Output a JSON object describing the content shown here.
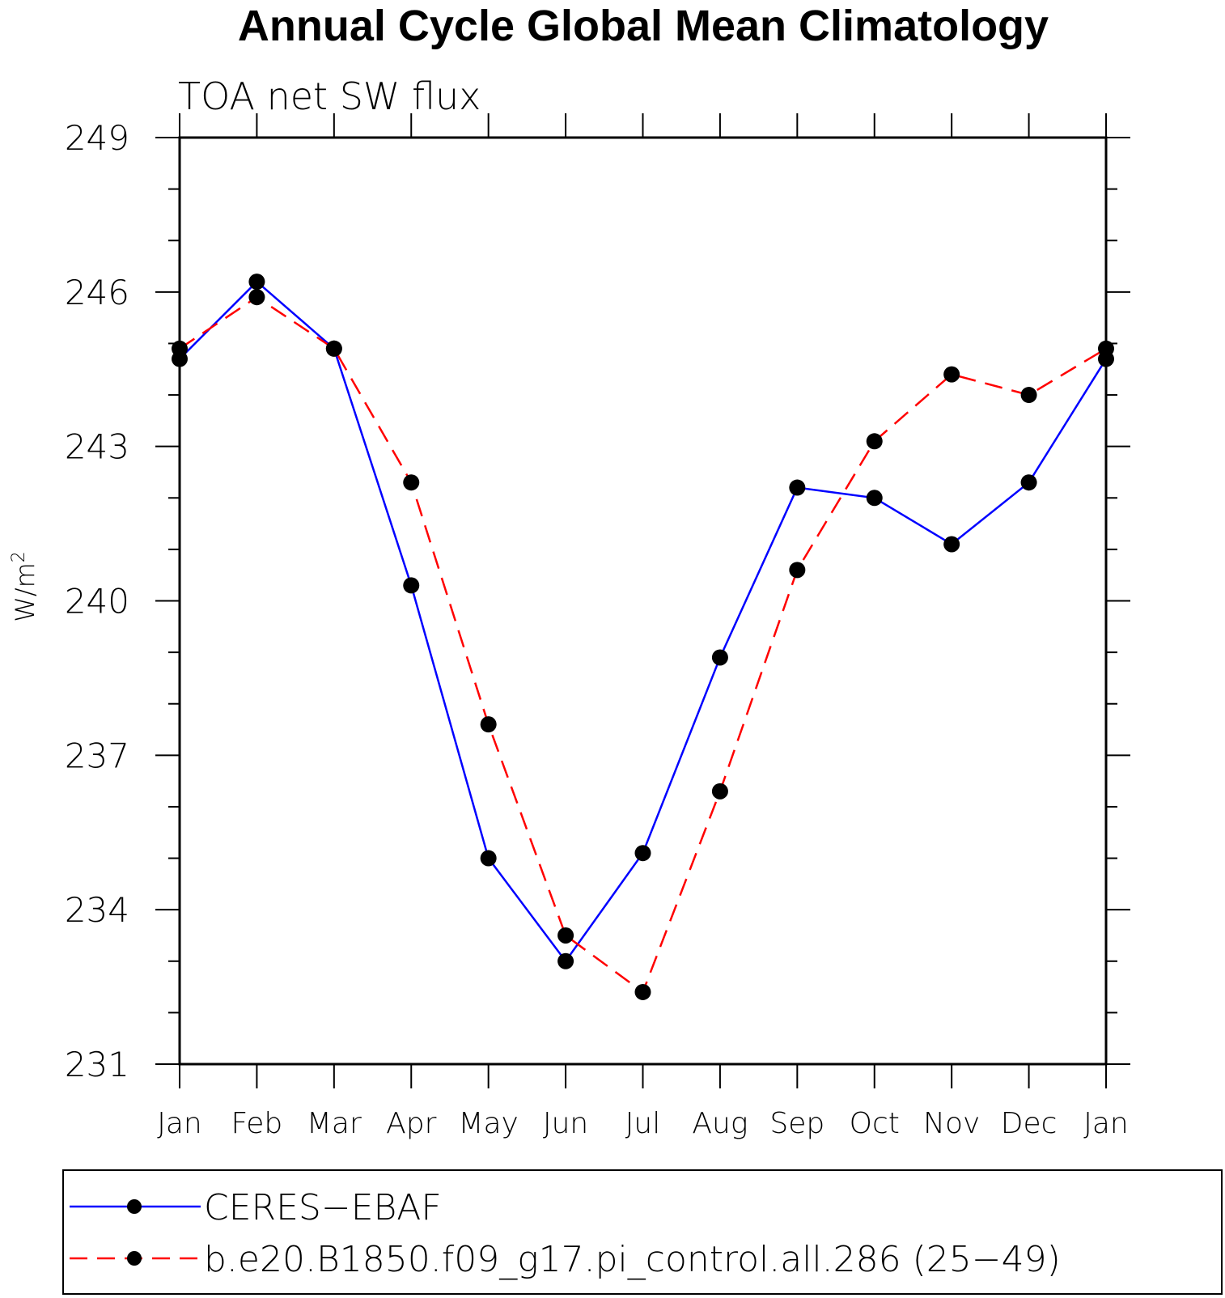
{
  "chart_data": {
    "type": "line",
    "title": "Annual Cycle Global Mean Climatology",
    "subtitle": "TOA net SW flux",
    "ylabel": "W/m",
    "ylabel_superscript": "2",
    "xlabel": "",
    "ylim": [
      231,
      249
    ],
    "yticks": [
      231,
      234,
      237,
      240,
      243,
      246,
      249
    ],
    "y_minor_step": 1,
    "x_tick_labels": [
      "Jan",
      "Feb",
      "Mar",
      "Apr",
      "May",
      "Jun",
      "Jul",
      "Aug",
      "Sep",
      "Oct",
      "Nov",
      "Dec",
      "Jan"
    ],
    "series": [
      {
        "name": "CERES−EBAF",
        "color": "#0000ff",
        "dash": "solid",
        "marker_color": "#000000",
        "values": [
          244.7,
          246.2,
          244.9,
          240.3,
          235.0,
          233.0,
          235.1,
          238.9,
          242.2,
          242.0,
          241.1,
          242.3,
          244.7
        ]
      },
      {
        "name": "b.e20.B1850.f09_g17.pi_control.all.286 (25−49)",
        "color": "#ff0000",
        "dash": "dashed",
        "marker_color": "#000000",
        "values": [
          244.9,
          245.9,
          244.9,
          242.3,
          237.6,
          233.5,
          232.4,
          236.3,
          240.6,
          243.1,
          244.4,
          244.0,
          244.9
        ]
      }
    ],
    "legend": {
      "position": "bottom"
    }
  }
}
